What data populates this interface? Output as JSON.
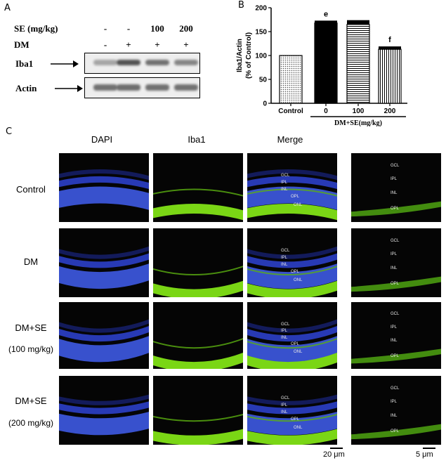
{
  "panels": {
    "a": "A",
    "b": "B",
    "c": "C"
  },
  "western": {
    "rows": [
      {
        "label": "SE (mg/kg)",
        "values": [
          "-",
          "-",
          "100",
          "200"
        ]
      },
      {
        "label": "DM",
        "values": [
          "-",
          "+",
          "+",
          "+"
        ]
      }
    ],
    "blots": [
      "Iba1",
      "Actin"
    ]
  },
  "chart_data": {
    "type": "bar",
    "ylabel_line1": "Iba1/Actin",
    "ylabel_line2": "(% of Control)",
    "categories": [
      "Control",
      "0",
      "100",
      "200"
    ],
    "values": [
      100,
      168,
      165,
      113
    ],
    "errors": [
      0,
      5,
      9,
      6
    ],
    "annotations": [
      "",
      "e",
      "",
      "f"
    ],
    "ylim": [
      0,
      200
    ],
    "yticks": [
      0,
      50,
      100,
      150,
      200
    ],
    "group_label": "DM+SE(mg/kg)"
  },
  "micrograph": {
    "columns": [
      "DAPI",
      "Iba1",
      "Merge"
    ],
    "rows": [
      {
        "line1": "Control",
        "line2": ""
      },
      {
        "line1": "DM",
        "line2": ""
      },
      {
        "line1": "DM+SE",
        "line2": "(100 mg/kg)"
      },
      {
        "line1": "DM+SE",
        "line2": "(200 mg/kg)"
      }
    ],
    "layers": [
      "GCL",
      "IPL",
      "INL",
      "OPL",
      "ONL"
    ],
    "scalebars": [
      "20 μm",
      "5 μm"
    ]
  }
}
